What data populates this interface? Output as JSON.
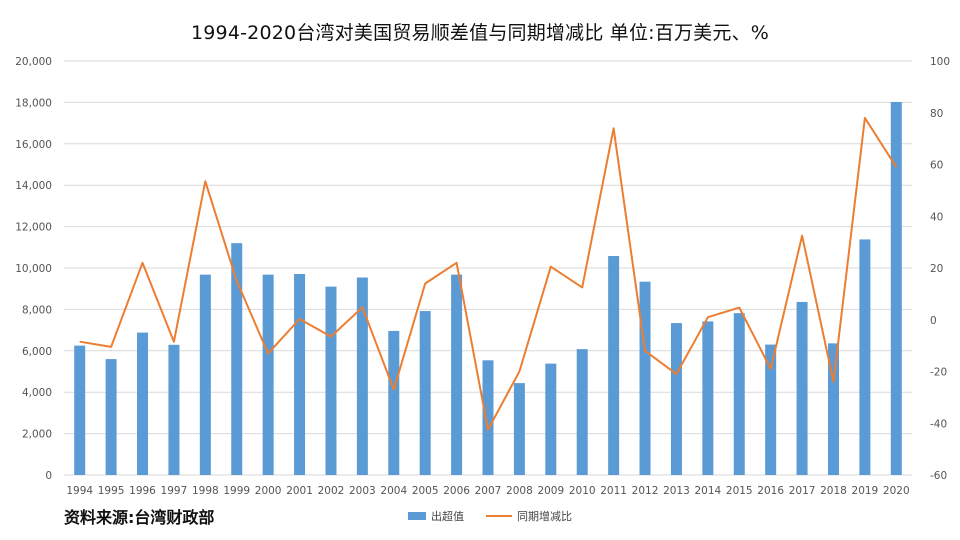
{
  "chart_data": {
    "type": "bar+line",
    "title": "1994-2020台湾对美国贸易顺差值与同期增减比 单位:百万美元、%",
    "categories": [
      "1994",
      "1995",
      "1996",
      "1997",
      "1998",
      "1999",
      "2000",
      "2001",
      "2002",
      "2003",
      "2004",
      "2005",
      "2006",
      "2007",
      "2008",
      "2009",
      "2010",
      "2011",
      "2012",
      "2013",
      "2014",
      "2015",
      "2016",
      "2017",
      "2018",
      "2019",
      "2020"
    ],
    "series": [
      {
        "name": "出超值",
        "type": "bar",
        "axis": "left",
        "color": "#5b9bd5",
        "values": [
          6250,
          5600,
          6880,
          6290,
          9680,
          11200,
          9680,
          9710,
          9100,
          9540,
          6960,
          7920,
          9680,
          5540,
          4440,
          5380,
          6080,
          10580,
          9340,
          7340,
          7420,
          7820,
          6300,
          8360,
          6360,
          11380,
          18020
        ]
      },
      {
        "name": "同期增减比",
        "type": "line",
        "axis": "right",
        "color": "#ed7d31",
        "values": [
          -8.5,
          -10.5,
          22,
          -8.5,
          53.5,
          15,
          -13,
          0.3,
          -6.5,
          4.8,
          -27,
          14,
          22,
          -42.5,
          -20,
          20.5,
          12.5,
          74,
          -12,
          -21,
          1,
          4.7,
          -19,
          32.5,
          -24,
          78,
          59
        ]
      }
    ],
    "y_left": {
      "min": 0,
      "max": 20000,
      "ticks": [
        "0",
        "2,000",
        "4,000",
        "6,000",
        "8,000",
        "10,000",
        "12,000",
        "14,000",
        "16,000",
        "18,000",
        "20,000"
      ]
    },
    "y_right": {
      "min": -60,
      "max": 100,
      "ticks": [
        "-60",
        "-40",
        "-20",
        "0",
        "20",
        "40",
        "60",
        "80",
        "100"
      ]
    },
    "grid": true,
    "legend_position": "bottom-center"
  },
  "source": "资料来源:台湾财政部",
  "colors": {
    "bar": "#5b9bd5",
    "line": "#ed7d31",
    "grid": "#d9d9d9"
  }
}
